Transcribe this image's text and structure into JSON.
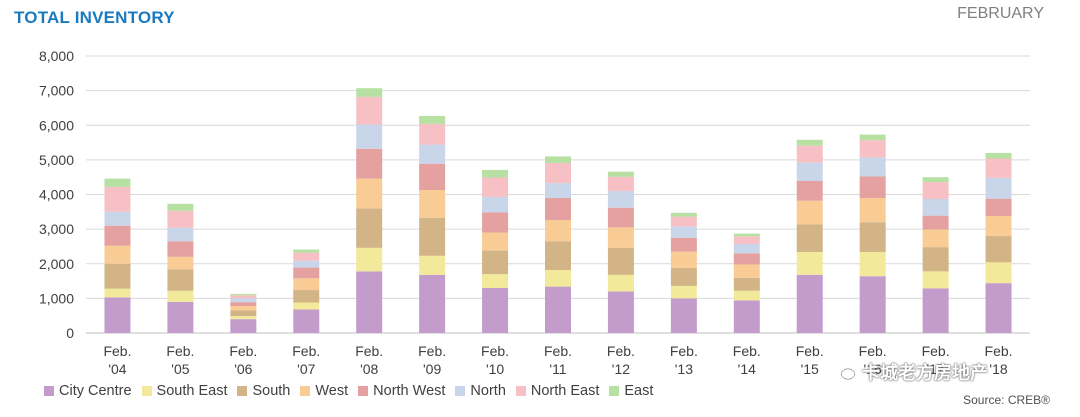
{
  "header": {
    "title": "TOTAL INVENTORY",
    "month": "FEBRUARY"
  },
  "footer": {
    "source": "Source: CREB®"
  },
  "watermark": {
    "text": "卡城老方房地产",
    "icon": "wechat-icon"
  },
  "chart_data": {
    "type": "bar",
    "stacked": true,
    "title": "TOTAL INVENTORY",
    "ylim": [
      0,
      8000
    ],
    "yticks": [
      "0",
      "1,000",
      "2,000",
      "3,000",
      "4,000",
      "5,000",
      "6,000",
      "7,000",
      "8,000"
    ],
    "grid": true,
    "legend_position": "bottom",
    "categories": [
      [
        "Feb.",
        "'04"
      ],
      [
        "Feb.",
        "'05"
      ],
      [
        "Feb.",
        "'06"
      ],
      [
        "Feb.",
        "'07"
      ],
      [
        "Feb.",
        "'08"
      ],
      [
        "Feb.",
        "'09"
      ],
      [
        "Feb.",
        "'10"
      ],
      [
        "Feb.",
        "'11"
      ],
      [
        "Feb.",
        "'12"
      ],
      [
        "Feb.",
        "'13"
      ],
      [
        "Feb.",
        "'14"
      ],
      [
        "Feb.",
        "'15"
      ],
      [
        "Feb.",
        "'16"
      ],
      [
        "Feb.",
        "'17"
      ],
      [
        "Feb.",
        "'18"
      ]
    ],
    "series": [
      {
        "name": "City Centre",
        "color": "#c39ccc",
        "values": [
          1030,
          900,
          400,
          680,
          1780,
          1680,
          1300,
          1340,
          1200,
          1000,
          940,
          1680,
          1640,
          1290,
          1440
        ]
      },
      {
        "name": "South East",
        "color": "#f2e99a",
        "values": [
          250,
          320,
          90,
          200,
          680,
          550,
          400,
          480,
          480,
          360,
          280,
          660,
          700,
          490,
          600
        ]
      },
      {
        "name": "South",
        "color": "#d2b487",
        "values": [
          720,
          620,
          160,
          360,
          1140,
          1100,
          680,
          830,
          780,
          520,
          370,
          800,
          860,
          700,
          760
        ]
      },
      {
        "name": "West",
        "color": "#f9cc95",
        "values": [
          520,
          360,
          130,
          340,
          860,
          800,
          520,
          610,
          590,
          470,
          390,
          680,
          700,
          510,
          580
        ]
      },
      {
        "name": "North West",
        "color": "#e5a0a0",
        "values": [
          580,
          450,
          110,
          310,
          860,
          760,
          580,
          640,
          570,
          400,
          320,
          570,
          620,
          400,
          500
        ]
      },
      {
        "name": "North",
        "color": "#c9d6ea",
        "values": [
          400,
          390,
          110,
          200,
          700,
          550,
          450,
          430,
          480,
          330,
          270,
          530,
          550,
          480,
          600
        ]
      },
      {
        "name": "North East",
        "color": "#f7c0c4",
        "values": [
          720,
          490,
          90,
          230,
          800,
          600,
          560,
          580,
          410,
          280,
          220,
          490,
          500,
          490,
          560
        ]
      },
      {
        "name": "East",
        "color": "#b7e0a3",
        "values": [
          240,
          200,
          40,
          90,
          250,
          230,
          220,
          190,
          150,
          110,
          80,
          170,
          160,
          140,
          160
        ]
      }
    ]
  }
}
